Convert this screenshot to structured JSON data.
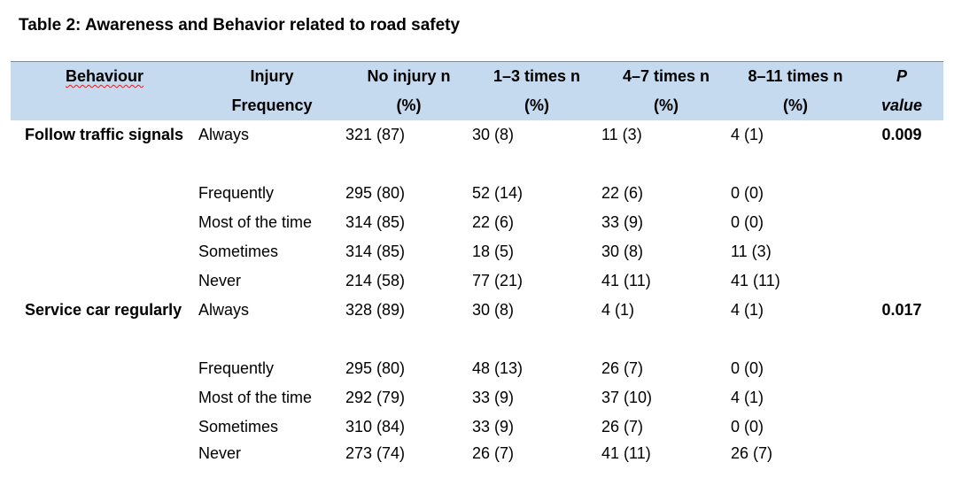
{
  "title": "Table 2: Awareness and Behavior related to road safety",
  "header": {
    "behaviour": [
      "Behaviour"
    ],
    "frequency": [
      "Injury",
      "Frequency"
    ],
    "no_injury": [
      "No injury n",
      "(%)"
    ],
    "one_three": [
      "1–3 times n",
      "(%)"
    ],
    "four_seven": [
      "4–7 times n",
      "(%)"
    ],
    "eight_eleven": [
      "8–11 times n",
      "(%)"
    ],
    "p_value": [
      "P",
      "value"
    ]
  },
  "groups": [
    {
      "behaviour": "Follow traffic signals",
      "p_value": "0.009",
      "rows": [
        {
          "frequency": "Always",
          "no_injury": "321 (87)",
          "one_three": "30 (8)",
          "four_seven": "11 (3)",
          "eight_eleven": "4 (1)"
        },
        {
          "frequency": "Frequently",
          "no_injury": "295 (80)",
          "one_three": "52 (14)",
          "four_seven": "22 (6)",
          "eight_eleven": "0 (0)"
        },
        {
          "frequency": "Most of the time",
          "no_injury": "314 (85)",
          "one_three": "22 (6)",
          "four_seven": "33 (9)",
          "eight_eleven": "0 (0)"
        },
        {
          "frequency": "Sometimes",
          "no_injury": "314 (85)",
          "one_three": "18 (5)",
          "four_seven": "30 (8)",
          "eight_eleven": "11 (3)"
        },
        {
          "frequency": "Never",
          "no_injury": "214 (58)",
          "one_three": "77 (21)",
          "four_seven": "41 (11)",
          "eight_eleven": "41 (11)"
        }
      ]
    },
    {
      "behaviour": "Service car regularly",
      "p_value": "0.017",
      "rows": [
        {
          "frequency": "Always",
          "no_injury": "328 (89)",
          "one_three": "30 (8)",
          "four_seven": "4 (1)",
          "eight_eleven": "4 (1)"
        },
        {
          "frequency": "Frequently",
          "no_injury": "295 (80)",
          "one_three": "48 (13)",
          "four_seven": "26 (7)",
          "eight_eleven": "0 (0)"
        },
        {
          "frequency": "Most of the time",
          "no_injury": "292 (79)",
          "one_three": "33 (9)",
          "four_seven": "37 (10)",
          "eight_eleven": "4 (1)"
        },
        {
          "frequency": "Sometimes",
          "no_injury": "310 (84)",
          "one_three": "33 (9)",
          "four_seven": "26 (7)",
          "eight_eleven": "0 (0)"
        },
        {
          "frequency": "Never",
          "no_injury": "273 (74)",
          "one_three": "26 (7)",
          "four_seven": "41 (11)",
          "eight_eleven": "26 (7)"
        }
      ]
    }
  ],
  "colors": {
    "header_background": "#c5d9ef",
    "spellcheck_underline": "#e02020"
  }
}
